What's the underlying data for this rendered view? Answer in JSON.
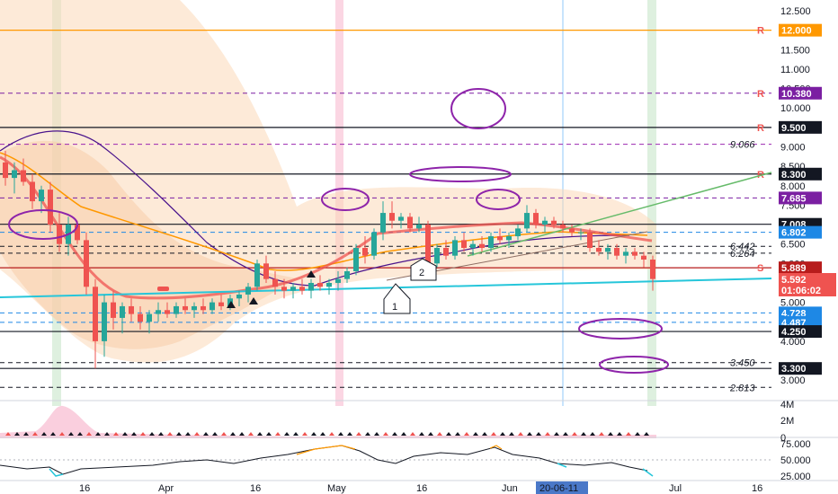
{
  "chart_data": {
    "type": "candlestick",
    "price_axis": {
      "ticks": [
        "12.500",
        "11.500",
        "11.000",
        "10.500",
        "10.000",
        "9.000",
        "8.500",
        "8.000",
        "7.500",
        "6.500",
        "6.000",
        "5.000",
        "4.500",
        "4.000",
        "3.000"
      ],
      "range": [
        2.6,
        12.6
      ],
      "scale": "linear"
    },
    "time_axis": {
      "ticks": [
        "16",
        "Apr",
        "16",
        "May",
        "16",
        "Jun",
        "20-06-11",
        "Jul",
        "16"
      ],
      "crosshair_label": "20-06-11"
    },
    "levels": [
      {
        "label": "12.000",
        "value": 12.0,
        "color": "#ff9800",
        "style": "solid",
        "marker": "R"
      },
      {
        "label": "10.380",
        "value": 10.38,
        "color": "#7b1fa2",
        "style": "dashed",
        "marker": "R"
      },
      {
        "label": "9.500",
        "value": 9.5,
        "color": "#131722",
        "style": "solid",
        "marker": "R"
      },
      {
        "label": "9.066",
        "value": 9.066,
        "color": "#9c27b0",
        "style": "dashed",
        "marker": ""
      },
      {
        "label": "8.300",
        "value": 8.3,
        "color": "#131722",
        "style": "solid",
        "marker": "R"
      },
      {
        "label": "7.685",
        "value": 7.685,
        "color": "#7b1fa2",
        "style": "dashed",
        "marker": ""
      },
      {
        "label": "7.008",
        "value": 7.008,
        "color": "#131722",
        "style": "solid",
        "marker": ""
      },
      {
        "label": "6.802",
        "value": 6.802,
        "color": "#1e88e5",
        "style": "dashed",
        "marker": ""
      },
      {
        "label": "6.442",
        "value": 6.442,
        "color": "#131722",
        "style": "dashed",
        "marker": ""
      },
      {
        "label": "6.264",
        "value": 6.264,
        "color": "#131722",
        "style": "dashed",
        "marker": ""
      },
      {
        "label": "5.889",
        "value": 5.889,
        "color": "#b71c1c",
        "style": "solid",
        "marker": "S"
      },
      {
        "label": "4.728",
        "value": 4.728,
        "color": "#1e88e5",
        "style": "dashed",
        "marker": ""
      },
      {
        "label": "4.487",
        "value": 4.487,
        "color": "#1e88e5",
        "style": "dashed",
        "marker": ""
      },
      {
        "label": "4.250",
        "value": 4.25,
        "color": "#131722",
        "style": "solid",
        "marker": ""
      },
      {
        "label": "3.450",
        "value": 3.45,
        "color": "#131722",
        "style": "dashed",
        "marker": ""
      },
      {
        "label": "3.300",
        "value": 3.3,
        "color": "#131722",
        "style": "solid",
        "marker": ""
      },
      {
        "label": "2.813",
        "value": 2.813,
        "color": "#131722",
        "style": "dashed",
        "marker": ""
      }
    ],
    "last_price": {
      "label": "5.592",
      "value": 5.592,
      "countdown": "01:06:02",
      "color": "#ef5350"
    },
    "callouts": [
      "1",
      "2"
    ],
    "volume_axis": [
      "4M",
      "2M",
      "0"
    ],
    "oscillator_axis": [
      "75.000",
      "50.000",
      "25.000"
    ],
    "candles": [
      {
        "o": 8.6,
        "h": 8.9,
        "l": 8.0,
        "c": 8.2
      },
      {
        "o": 8.2,
        "h": 8.6,
        "l": 7.8,
        "c": 8.4
      },
      {
        "o": 8.4,
        "h": 8.7,
        "l": 8.0,
        "c": 8.1
      },
      {
        "o": 8.1,
        "h": 8.3,
        "l": 7.4,
        "c": 7.6
      },
      {
        "o": 7.6,
        "h": 8.0,
        "l": 7.3,
        "c": 7.9
      },
      {
        "o": 7.9,
        "h": 8.1,
        "l": 6.8,
        "c": 7.0
      },
      {
        "o": 7.0,
        "h": 7.3,
        "l": 6.3,
        "c": 6.5
      },
      {
        "o": 6.5,
        "h": 7.2,
        "l": 6.2,
        "c": 7.0
      },
      {
        "o": 7.0,
        "h": 7.1,
        "l": 6.5,
        "c": 6.6
      },
      {
        "o": 6.6,
        "h": 6.8,
        "l": 5.2,
        "c": 5.4
      },
      {
        "o": 5.4,
        "h": 5.6,
        "l": 3.3,
        "c": 4.0
      },
      {
        "o": 4.0,
        "h": 5.2,
        "l": 3.6,
        "c": 5.0
      },
      {
        "o": 5.0,
        "h": 5.3,
        "l": 4.3,
        "c": 4.6
      },
      {
        "o": 4.6,
        "h": 5.0,
        "l": 4.2,
        "c": 4.9
      },
      {
        "o": 4.9,
        "h": 5.1,
        "l": 4.5,
        "c": 4.7
      },
      {
        "o": 4.7,
        "h": 4.9,
        "l": 4.3,
        "c": 4.5
      },
      {
        "o": 4.5,
        "h": 4.8,
        "l": 4.2,
        "c": 4.7
      },
      {
        "o": 4.7,
        "h": 5.0,
        "l": 4.5,
        "c": 4.8
      },
      {
        "o": 4.8,
        "h": 5.0,
        "l": 4.6,
        "c": 4.7
      },
      {
        "o": 4.7,
        "h": 5.0,
        "l": 4.6,
        "c": 4.9
      },
      {
        "o": 4.9,
        "h": 5.1,
        "l": 4.7,
        "c": 4.8
      },
      {
        "o": 4.8,
        "h": 5.0,
        "l": 4.6,
        "c": 4.9
      },
      {
        "o": 4.9,
        "h": 5.1,
        "l": 4.7,
        "c": 4.8
      },
      {
        "o": 4.8,
        "h": 5.1,
        "l": 4.7,
        "c": 5.0
      },
      {
        "o": 5.0,
        "h": 5.2,
        "l": 4.8,
        "c": 4.9
      },
      {
        "o": 4.9,
        "h": 5.2,
        "l": 4.8,
        "c": 5.1
      },
      {
        "o": 5.1,
        "h": 5.3,
        "l": 4.9,
        "c": 5.2
      },
      {
        "o": 5.2,
        "h": 5.5,
        "l": 5.0,
        "c": 5.4
      },
      {
        "o": 5.4,
        "h": 6.1,
        "l": 5.3,
        "c": 6.0
      },
      {
        "o": 6.0,
        "h": 6.2,
        "l": 5.5,
        "c": 5.6
      },
      {
        "o": 5.6,
        "h": 5.8,
        "l": 5.2,
        "c": 5.4
      },
      {
        "o": 5.4,
        "h": 5.6,
        "l": 5.1,
        "c": 5.3
      },
      {
        "o": 5.3,
        "h": 5.5,
        "l": 5.1,
        "c": 5.4
      },
      {
        "o": 5.4,
        "h": 5.6,
        "l": 5.2,
        "c": 5.3
      },
      {
        "o": 5.3,
        "h": 5.6,
        "l": 5.1,
        "c": 5.5
      },
      {
        "o": 5.5,
        "h": 5.7,
        "l": 5.3,
        "c": 5.4
      },
      {
        "o": 5.4,
        "h": 5.6,
        "l": 5.2,
        "c": 5.5
      },
      {
        "o": 5.5,
        "h": 5.8,
        "l": 5.3,
        "c": 5.6
      },
      {
        "o": 5.6,
        "h": 5.9,
        "l": 5.5,
        "c": 5.8
      },
      {
        "o": 5.8,
        "h": 6.5,
        "l": 5.7,
        "c": 6.4
      },
      {
        "o": 6.4,
        "h": 6.7,
        "l": 6.0,
        "c": 6.2
      },
      {
        "o": 6.2,
        "h": 6.9,
        "l": 6.1,
        "c": 6.8
      },
      {
        "o": 6.8,
        "h": 7.6,
        "l": 6.6,
        "c": 7.3
      },
      {
        "o": 7.3,
        "h": 7.6,
        "l": 6.9,
        "c": 7.1
      },
      {
        "o": 7.1,
        "h": 7.3,
        "l": 6.9,
        "c": 7.2
      },
      {
        "o": 7.2,
        "h": 7.3,
        "l": 6.8,
        "c": 6.9
      },
      {
        "o": 6.9,
        "h": 7.2,
        "l": 6.8,
        "c": 7.0
      },
      {
        "o": 7.0,
        "h": 7.1,
        "l": 5.8,
        "c": 6.0
      },
      {
        "o": 6.0,
        "h": 6.5,
        "l": 5.9,
        "c": 6.4
      },
      {
        "o": 6.4,
        "h": 6.6,
        "l": 6.1,
        "c": 6.2
      },
      {
        "o": 6.2,
        "h": 6.7,
        "l": 6.1,
        "c": 6.6
      },
      {
        "o": 6.6,
        "h": 6.8,
        "l": 6.3,
        "c": 6.4
      },
      {
        "o": 6.4,
        "h": 6.6,
        "l": 6.2,
        "c": 6.5
      },
      {
        "o": 6.5,
        "h": 6.7,
        "l": 6.3,
        "c": 6.4
      },
      {
        "o": 6.4,
        "h": 6.8,
        "l": 6.3,
        "c": 6.7
      },
      {
        "o": 6.7,
        "h": 6.9,
        "l": 6.5,
        "c": 6.6
      },
      {
        "o": 6.6,
        "h": 6.8,
        "l": 6.4,
        "c": 6.7
      },
      {
        "o": 6.7,
        "h": 7.0,
        "l": 6.6,
        "c": 6.9
      },
      {
        "o": 6.9,
        "h": 7.5,
        "l": 6.8,
        "c": 7.3
      },
      {
        "o": 7.3,
        "h": 7.4,
        "l": 6.9,
        "c": 7.0
      },
      {
        "o": 7.0,
        "h": 7.2,
        "l": 6.8,
        "c": 7.1
      },
      {
        "o": 7.1,
        "h": 7.2,
        "l": 6.9,
        "c": 7.0
      },
      {
        "o": 7.0,
        "h": 7.1,
        "l": 6.8,
        "c": 6.9
      },
      {
        "o": 6.9,
        "h": 7.0,
        "l": 6.7,
        "c": 6.8
      },
      {
        "o": 6.8,
        "h": 6.9,
        "l": 6.6,
        "c": 6.8
      },
      {
        "o": 6.8,
        "h": 6.9,
        "l": 6.3,
        "c": 6.4
      },
      {
        "o": 6.4,
        "h": 6.6,
        "l": 6.2,
        "c": 6.3
      },
      {
        "o": 6.3,
        "h": 6.5,
        "l": 6.1,
        "c": 6.4
      },
      {
        "o": 6.4,
        "h": 6.5,
        "l": 6.1,
        "c": 6.2
      },
      {
        "o": 6.2,
        "h": 6.4,
        "l": 6.0,
        "c": 6.3
      },
      {
        "o": 6.3,
        "h": 6.4,
        "l": 6.1,
        "c": 6.2
      },
      {
        "o": 6.2,
        "h": 6.3,
        "l": 5.9,
        "c": 6.1
      },
      {
        "o": 6.1,
        "h": 6.2,
        "l": 5.3,
        "c": 5.6
      }
    ]
  }
}
